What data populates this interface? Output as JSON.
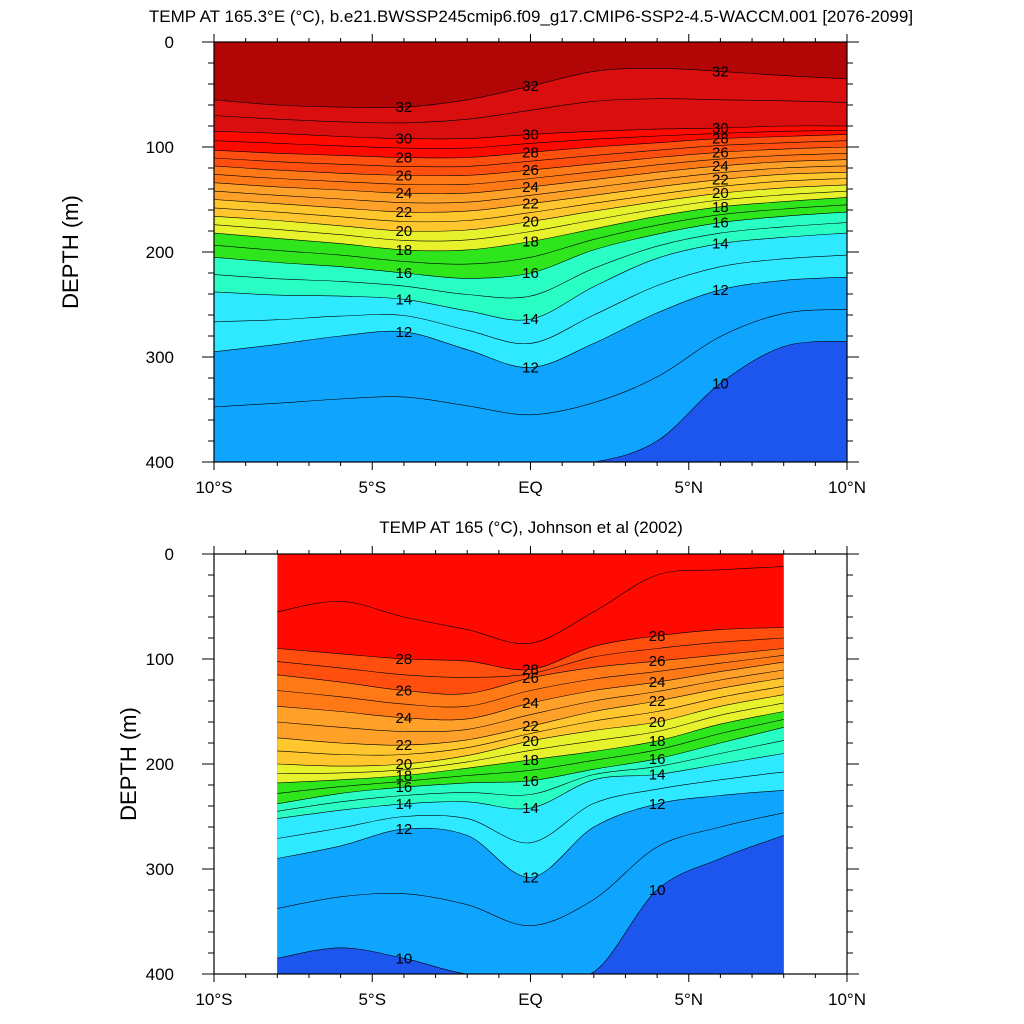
{
  "chart_data": [
    {
      "type": "contour",
      "title": "TEMP AT 165.3°E (°C), b.e21.BWSSP245cmip6.f09_g17.CMIP6-SSP2-4.5-WACCM.001 [2076-2099]",
      "xlabel": "",
      "ylabel": "DEPTH (m)",
      "xlim": [
        -10,
        10
      ],
      "ylim": [
        0,
        400
      ],
      "y_inverted": true,
      "x_ticks": [
        -10,
        -5,
        0,
        5,
        10
      ],
      "x_tick_labels": [
        "10°S",
        "5°S",
        "EQ",
        "5°N",
        "10°N"
      ],
      "y_ticks": [
        0,
        100,
        200,
        300,
        400
      ],
      "y_tick_labels": [
        "0",
        "100",
        "200",
        "300",
        "400"
      ],
      "data_xlim": [
        -10,
        10
      ],
      "contour_interval": 1,
      "x": [
        -10,
        -8,
        -6,
        -4,
        -2,
        0,
        2,
        4,
        6,
        8,
        10
      ],
      "isotherms": [
        {
          "level": 32,
          "depth": [
            55,
            60,
            62,
            62,
            55,
            42,
            28,
            25,
            28,
            32,
            35
          ],
          "label": "32"
        },
        {
          "level": 30,
          "depth": [
            85,
            87,
            90,
            92,
            92,
            88,
            85,
            83,
            82,
            80,
            80
          ],
          "label": "30"
        },
        {
          "level": 28,
          "depth": [
            103,
            106,
            108,
            110,
            110,
            105,
            100,
            96,
            92,
            90,
            88
          ],
          "label": "28"
        },
        {
          "level": 26,
          "depth": [
            118,
            122,
            125,
            127,
            127,
            122,
            116,
            110,
            105,
            102,
            100
          ],
          "label": "26"
        },
        {
          "level": 24,
          "depth": [
            134,
            138,
            141,
            144,
            144,
            138,
            131,
            124,
            118,
            114,
            112
          ],
          "label": "24"
        },
        {
          "level": 22,
          "depth": [
            150,
            154,
            158,
            162,
            161,
            154,
            146,
            138,
            131,
            126,
            124
          ],
          "label": "22"
        },
        {
          "level": 20,
          "depth": [
            166,
            170,
            175,
            180,
            179,
            171,
            161,
            152,
            144,
            139,
            136
          ],
          "label": "20"
        },
        {
          "level": 18,
          "depth": [
            182,
            187,
            192,
            198,
            198,
            190,
            178,
            166,
            157,
            152,
            148
          ],
          "label": "18"
        },
        {
          "level": 16,
          "depth": [
            205,
            210,
            214,
            220,
            225,
            220,
            198,
            183,
            172,
            166,
            162
          ],
          "label": "16"
        },
        {
          "level": 14,
          "depth": [
            238,
            241,
            242,
            245,
            256,
            264,
            233,
            206,
            192,
            186,
            182
          ],
          "label": "14"
        },
        {
          "level": 12,
          "depth": [
            295,
            288,
            280,
            276,
            293,
            310,
            287,
            258,
            236,
            227,
            224
          ],
          "label": "12"
        },
        {
          "level": 10,
          "depth": [
            400,
            400,
            400,
            400,
            400,
            400,
            400,
            380,
            325,
            290,
            285
          ],
          "label": "10"
        }
      ]
    },
    {
      "type": "contour",
      "title": "TEMP AT 165 (°C), Johnson et al (2002)",
      "xlabel": "",
      "ylabel": "DEPTH (m)",
      "xlim": [
        -10,
        10
      ],
      "ylim": [
        0,
        400
      ],
      "y_inverted": true,
      "x_ticks": [
        -10,
        -5,
        0,
        5,
        10
      ],
      "x_tick_labels": [
        "10°S",
        "5°S",
        "EQ",
        "5°N",
        "10°N"
      ],
      "y_ticks": [
        0,
        100,
        200,
        300,
        400
      ],
      "y_tick_labels": [
        "0",
        "100",
        "200",
        "300",
        "400"
      ],
      "data_xlim": [
        -8,
        8
      ],
      "contour_interval": 1,
      "x": [
        -8,
        -6,
        -4,
        -2,
        0,
        2,
        4,
        6,
        8
      ],
      "isotherms": [
        {
          "level": 29,
          "depth": [
            55,
            45,
            60,
            72,
            85,
            55,
            20,
            15,
            12
          ],
          "label": ""
        },
        {
          "level": 28,
          "depth": [
            90,
            95,
            100,
            102,
            110,
            88,
            78,
            72,
            70
          ],
          "label": "28"
        },
        {
          "level": 26,
          "depth": [
            115,
            122,
            130,
            133,
            118,
            108,
            102,
            96,
            90
          ],
          "label": "26"
        },
        {
          "level": 24,
          "depth": [
            145,
            150,
            156,
            157,
            142,
            130,
            122,
            112,
            103
          ],
          "label": "24"
        },
        {
          "level": 22,
          "depth": [
            175,
            180,
            182,
            177,
            164,
            150,
            140,
            128,
            118
          ],
          "label": "22"
        },
        {
          "level": 20,
          "depth": [
            200,
            202,
            200,
            192,
            178,
            168,
            160,
            145,
            134
          ],
          "label": "20"
        },
        {
          "level": 18,
          "depth": [
            218,
            215,
            211,
            204,
            196,
            188,
            178,
            162,
            150
          ],
          "label": "18"
        },
        {
          "level": 16,
          "depth": [
            238,
            228,
            222,
            218,
            216,
            205,
            195,
            180,
            165
          ],
          "label": "16"
        },
        {
          "level": 14,
          "depth": [
            252,
            244,
            238,
            236,
            242,
            215,
            210,
            200,
            190
          ],
          "label": "14"
        },
        {
          "level": 12,
          "depth": [
            290,
            278,
            262,
            268,
            308,
            260,
            238,
            230,
            225
          ],
          "label": "12"
        },
        {
          "level": 10,
          "depth": [
            385,
            375,
            385,
            400,
            400,
            398,
            320,
            290,
            268
          ],
          "label": "10"
        }
      ]
    }
  ],
  "colors": {
    "above_32": "#b20606",
    "c_30_32": "#d90e0e",
    "c_28_30": "#ff0a00",
    "c_26_28": "#ff4e0d",
    "c_24_26": "#ff7a16",
    "c_22_24": "#ffa128",
    "c_20_22": "#ffc72d",
    "c_18_20": "#e7f22d",
    "c_16_18": "#2ee61b",
    "c_14_16": "#29ffc4",
    "c_12_14": "#2ee9ff",
    "c_10_12": "#0fa5ff",
    "below_10": "#1d55ef"
  }
}
